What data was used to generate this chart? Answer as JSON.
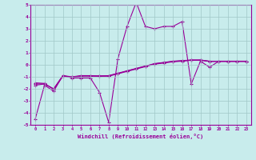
{
  "xlabel": "Windchill (Refroidissement éolien,°C)",
  "background_color": "#c8ecec",
  "grid_color": "#a0c8c8",
  "line_color": "#990099",
  "x_data": [
    0,
    1,
    2,
    3,
    4,
    5,
    6,
    7,
    8,
    9,
    10,
    11,
    12,
    13,
    14,
    15,
    16,
    17,
    18,
    19,
    20,
    21,
    22,
    23
  ],
  "series1": [
    -4.5,
    -1.7,
    -2.2,
    -0.9,
    -1.1,
    -1.1,
    -1.1,
    -2.3,
    -4.8,
    0.5,
    3.2,
    5.2,
    3.2,
    3.0,
    3.2,
    3.2,
    3.6,
    -1.6,
    0.3,
    -0.2,
    0.3,
    0.3,
    0.3,
    0.3
  ],
  "series2": [
    -1.7,
    -1.6,
    -2.0,
    -0.9,
    -1.0,
    -0.9,
    -0.9,
    -0.95,
    -0.95,
    -0.75,
    -0.55,
    -0.35,
    -0.15,
    0.05,
    0.15,
    0.25,
    0.3,
    0.38,
    0.38,
    0.28,
    0.28,
    0.28,
    0.28,
    0.28
  ],
  "series3": [
    -1.5,
    -1.55,
    -2.05,
    -0.95,
    -1.05,
    -0.95,
    -0.95,
    -0.95,
    -0.9,
    -0.7,
    -0.5,
    -0.3,
    -0.1,
    0.1,
    0.2,
    0.3,
    0.35,
    0.4,
    0.4,
    0.3,
    0.3,
    0.3,
    0.3,
    0.3
  ],
  "series4": [
    -1.6,
    -1.58,
    -2.02,
    -0.92,
    -1.02,
    -0.92,
    -0.92,
    -0.92,
    -0.92,
    -0.72,
    -0.52,
    -0.32,
    -0.12,
    0.08,
    0.18,
    0.28,
    0.33,
    0.39,
    0.39,
    0.29,
    0.29,
    0.29,
    0.29,
    0.29
  ],
  "ylim": [
    -5,
    5
  ],
  "xlim": [
    -0.5,
    23.5
  ],
  "yticks": [
    -5,
    -4,
    -3,
    -2,
    -1,
    0,
    1,
    2,
    3,
    4,
    5
  ],
  "xticks": [
    0,
    1,
    2,
    3,
    4,
    5,
    6,
    7,
    8,
    9,
    10,
    11,
    12,
    13,
    14,
    15,
    16,
    17,
    18,
    19,
    20,
    21,
    22,
    23
  ]
}
